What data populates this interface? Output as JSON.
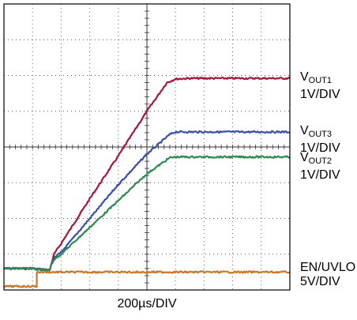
{
  "chart_data": {
    "type": "line",
    "x_axis": {
      "divisions": 10,
      "label": "200µs/DIV"
    },
    "y_axis": {
      "divisions": 8
    },
    "grid": true,
    "series": [
      {
        "key": "vout1",
        "name_main": "V",
        "name_sub": "OUT1",
        "scale": "1V/DIV",
        "color": "#a3173a",
        "x": [
          0,
          0.3,
          0.6,
          1.0,
          1.6,
          1.65,
          1.75,
          2.0,
          3.0,
          4.0,
          5.0,
          5.7,
          6.0,
          6.5,
          8.0,
          9.0,
          10.0
        ],
        "y": [
          0.6,
          0.6,
          0.6,
          0.6,
          0.55,
          0.7,
          1.0,
          1.3,
          2.55,
          3.75,
          5.0,
          5.8,
          5.9,
          5.92,
          5.92,
          5.92,
          5.92
        ]
      },
      {
        "key": "vout3",
        "name_main": "V",
        "name_sub": "OUT3",
        "scale": "1V/DIV",
        "color": "#3a4fa8",
        "x": [
          0,
          0.3,
          0.6,
          1.0,
          1.6,
          1.65,
          1.75,
          2.0,
          3.0,
          4.0,
          5.0,
          5.8,
          6.0,
          6.5,
          8.0,
          9.0,
          10.0
        ],
        "y": [
          0.6,
          0.6,
          0.6,
          0.6,
          0.55,
          0.7,
          0.9,
          1.05,
          2.0,
          2.95,
          3.8,
          4.35,
          4.42,
          4.42,
          4.42,
          4.42,
          4.42
        ]
      },
      {
        "key": "vout2",
        "name_main": "V",
        "name_sub": "OUT2",
        "scale": "1V/DIV",
        "color": "#2f8a4f",
        "x": [
          0,
          0.3,
          0.6,
          1.0,
          1.6,
          1.65,
          1.75,
          2.0,
          3.0,
          4.0,
          5.0,
          5.8,
          6.0,
          6.5,
          8.0,
          9.0,
          10.0
        ],
        "y": [
          0.6,
          0.6,
          0.6,
          0.6,
          0.55,
          0.7,
          0.85,
          1.0,
          1.75,
          2.5,
          3.25,
          3.7,
          3.72,
          3.72,
          3.72,
          3.72,
          3.72
        ]
      },
      {
        "key": "en",
        "name_main": "EN/UVLO",
        "name_sub": "",
        "scale": "5V/DIV",
        "color": "#c8782a",
        "x": [
          0,
          1.15,
          1.15,
          10.0
        ],
        "y": [
          0.1,
          0.1,
          0.5,
          0.5
        ]
      }
    ]
  }
}
